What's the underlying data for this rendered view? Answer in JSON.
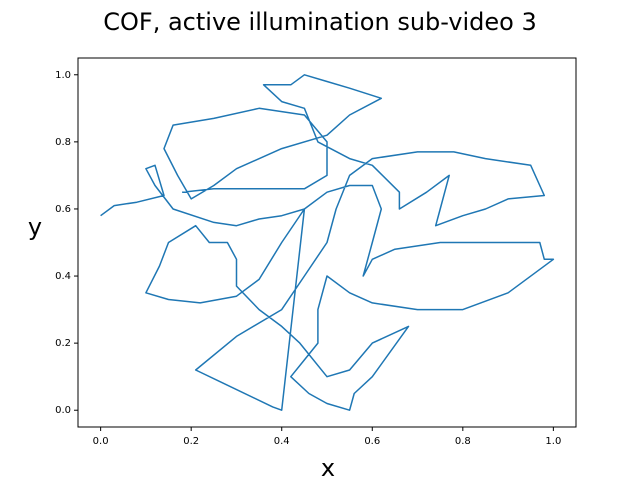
{
  "chart_data": {
    "type": "line",
    "title": "COF, active illumination sub-video 3",
    "x_label": "x",
    "y_label": "y",
    "xlim": [
      -0.05,
      1.05
    ],
    "ylim": [
      -0.05,
      1.05
    ],
    "xticks": [
      {
        "value": 0,
        "label": "0.0"
      },
      0.2,
      0.4,
      0.6,
      0.8,
      {
        "value": 1,
        "label": "1.0"
      }
    ],
    "yticks": [
      {
        "value": 0,
        "label": "0.0"
      },
      0.2,
      0.4,
      0.6,
      0.8,
      {
        "value": 1,
        "label": "1.0"
      }
    ],
    "grid": false,
    "series": [
      {
        "color": "#1f77b4",
        "x": [
          0.0,
          0.03,
          0.08,
          0.14,
          0.12,
          0.1,
          0.12,
          0.16,
          0.25,
          0.3,
          0.35,
          0.4,
          0.45,
          0.5,
          0.55,
          0.6,
          0.62,
          0.6,
          0.58,
          0.6,
          0.65,
          0.75,
          0.85,
          0.97,
          0.98,
          1.0,
          0.9,
          0.8,
          0.7,
          0.6,
          0.55,
          0.5,
          0.48,
          0.48,
          0.45,
          0.42,
          0.46,
          0.5,
          0.55,
          0.56,
          0.6,
          0.68,
          0.6,
          0.55,
          0.5,
          0.44,
          0.4,
          0.35,
          0.3,
          0.3,
          0.28,
          0.24,
          0.21,
          0.15,
          0.13,
          0.1,
          0.15,
          0.22,
          0.3,
          0.35,
          0.4,
          0.45,
          0.4,
          0.38,
          0.21,
          0.3,
          0.4,
          0.45,
          0.5,
          0.52,
          0.55,
          0.6,
          0.7,
          0.78,
          0.85,
          0.95,
          0.98,
          0.9,
          0.85,
          0.8,
          0.74,
          0.75,
          0.77,
          0.72,
          0.66,
          0.66,
          0.6,
          0.55,
          0.48,
          0.45,
          0.4,
          0.36,
          0.42,
          0.45,
          0.5,
          0.55,
          0.62,
          0.55,
          0.5,
          0.4,
          0.3,
          0.25,
          0.2,
          0.17,
          0.14,
          0.16,
          0.25,
          0.35,
          0.45,
          0.5,
          0.5,
          0.45,
          0.35,
          0.25,
          0.18
        ],
        "values": [
          0.58,
          0.61,
          0.62,
          0.64,
          0.73,
          0.72,
          0.67,
          0.6,
          0.56,
          0.55,
          0.57,
          0.58,
          0.6,
          0.65,
          0.67,
          0.67,
          0.6,
          0.5,
          0.4,
          0.45,
          0.48,
          0.5,
          0.5,
          0.5,
          0.45,
          0.45,
          0.35,
          0.3,
          0.3,
          0.32,
          0.35,
          0.4,
          0.3,
          0.2,
          0.15,
          0.1,
          0.05,
          0.02,
          0.0,
          0.05,
          0.1,
          0.25,
          0.2,
          0.12,
          0.1,
          0.2,
          0.25,
          0.3,
          0.37,
          0.45,
          0.5,
          0.5,
          0.55,
          0.5,
          0.43,
          0.35,
          0.33,
          0.32,
          0.34,
          0.39,
          0.5,
          0.6,
          0.0,
          0.01,
          0.12,
          0.22,
          0.3,
          0.4,
          0.5,
          0.6,
          0.7,
          0.75,
          0.77,
          0.77,
          0.75,
          0.73,
          0.64,
          0.63,
          0.6,
          0.58,
          0.55,
          0.6,
          0.7,
          0.65,
          0.6,
          0.65,
          0.73,
          0.75,
          0.8,
          0.9,
          0.92,
          0.97,
          0.97,
          1.0,
          0.98,
          0.96,
          0.93,
          0.88,
          0.82,
          0.78,
          0.72,
          0.67,
          0.63,
          0.7,
          0.78,
          0.85,
          0.87,
          0.9,
          0.88,
          0.8,
          0.7,
          0.66,
          0.66,
          0.66,
          0.65
        ]
      }
    ]
  }
}
